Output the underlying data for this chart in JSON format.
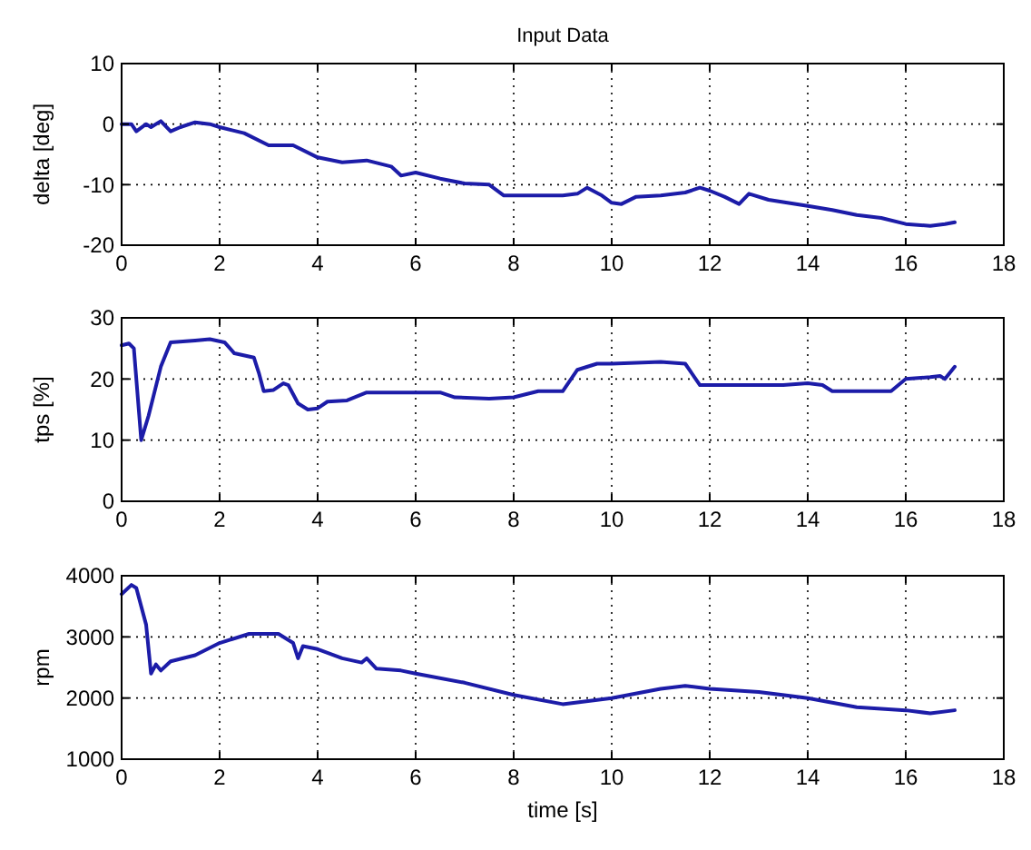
{
  "chart_data": [
    {
      "type": "line",
      "title": "Input Data",
      "ylabel": "delta [deg]",
      "xlim": [
        0,
        18
      ],
      "xticks": [
        0,
        2,
        4,
        6,
        8,
        10,
        12,
        14,
        16,
        18
      ],
      "ylim": [
        -20,
        10
      ],
      "yticks": [
        -20,
        -10,
        0,
        10
      ],
      "grid": true,
      "x": [
        0,
        0.2,
        0.3,
        0.5,
        0.6,
        0.8,
        1.0,
        1.2,
        1.5,
        1.8,
        2.0,
        2.5,
        3.0,
        3.5,
        4.0,
        4.5,
        5.0,
        5.5,
        5.7,
        6.0,
        6.5,
        7.0,
        7.5,
        7.8,
        8.5,
        9.0,
        9.3,
        9.5,
        9.8,
        10.0,
        10.2,
        10.5,
        11.0,
        11.5,
        11.8,
        12.0,
        12.3,
        12.6,
        12.8,
        13.2,
        14.0,
        14.5,
        15.0,
        15.5,
        16.0,
        16.5,
        16.8,
        17.0
      ],
      "series": [
        {
          "color": "#1c1ca8",
          "values": [
            0,
            0,
            -1.2,
            0,
            -0.5,
            0.5,
            -1.2,
            -0.5,
            0.3,
            0,
            -0.5,
            -1.5,
            -3.5,
            -3.5,
            -5.5,
            -6.3,
            -6,
            -7,
            -8.5,
            -8,
            -9,
            -9.8,
            -10,
            -11.8,
            -11.8,
            -11.8,
            -11.5,
            -10.5,
            -11.8,
            -13,
            -13.2,
            -12,
            -11.8,
            -11.3,
            -10.5,
            -11,
            -12,
            -13.2,
            -11.5,
            -12.5,
            -13.5,
            -14.2,
            -15,
            -15.5,
            -16.5,
            -16.8,
            -16.5,
            -16.2
          ]
        }
      ]
    },
    {
      "type": "line",
      "ylabel": "tps [%]",
      "xlim": [
        0,
        18
      ],
      "xticks": [
        0,
        2,
        4,
        6,
        8,
        10,
        12,
        14,
        16,
        18
      ],
      "ylim": [
        0,
        30
      ],
      "yticks": [
        0,
        10,
        20,
        30
      ],
      "grid": true,
      "x": [
        0,
        0.15,
        0.25,
        0.4,
        0.55,
        0.8,
        1.0,
        1.5,
        1.8,
        2.1,
        2.3,
        2.7,
        2.8,
        2.9,
        3.1,
        3.3,
        3.4,
        3.6,
        3.8,
        4.0,
        4.2,
        4.6,
        5.0,
        6.0,
        6.5,
        6.8,
        7.5,
        8.0,
        8.5,
        9.0,
        9.3,
        9.7,
        10.0,
        11.0,
        11.5,
        11.8,
        12.5,
        13.0,
        13.5,
        14.0,
        14.3,
        14.5,
        15.0,
        15.7,
        16.0,
        16.5,
        16.7,
        16.8,
        17.0
      ],
      "series": [
        {
          "color": "#1c1ca8",
          "values": [
            25.5,
            25.8,
            25,
            10,
            14,
            22,
            26,
            26.3,
            26.5,
            26,
            24.2,
            23.5,
            21,
            18,
            18.2,
            19.3,
            19,
            16,
            15,
            15.2,
            16.3,
            16.5,
            17.8,
            17.8,
            17.8,
            17,
            16.8,
            17,
            18,
            18,
            21.5,
            22.5,
            22.5,
            22.8,
            22.5,
            19,
            19,
            19,
            19,
            19.3,
            19,
            18,
            18,
            18,
            20,
            20.3,
            20.5,
            20,
            22
          ]
        }
      ]
    },
    {
      "type": "line",
      "xlabel": "time [s]",
      "ylabel": "rpm",
      "xlim": [
        0,
        18
      ],
      "xticks": [
        0,
        2,
        4,
        6,
        8,
        10,
        12,
        14,
        16,
        18
      ],
      "ylim": [
        1000,
        4000
      ],
      "yticks": [
        1000,
        2000,
        3000,
        4000
      ],
      "grid": true,
      "x": [
        0,
        0.2,
        0.3,
        0.5,
        0.6,
        0.7,
        0.8,
        1.0,
        1.5,
        2.0,
        2.6,
        3.2,
        3.5,
        3.6,
        3.7,
        4.0,
        4.5,
        4.9,
        5.0,
        5.2,
        5.7,
        6.0,
        7.0,
        8.0,
        9.0,
        10.0,
        11.0,
        11.5,
        12.0,
        13.0,
        14.0,
        15.0,
        16.0,
        16.5,
        17.0
      ],
      "series": [
        {
          "color": "#1c1ca8",
          "values": [
            3700,
            3850,
            3800,
            3200,
            2400,
            2550,
            2450,
            2600,
            2700,
            2900,
            3050,
            3050,
            2900,
            2650,
            2850,
            2800,
            2650,
            2580,
            2650,
            2480,
            2450,
            2400,
            2250,
            2050,
            1900,
            2000,
            2150,
            2200,
            2150,
            2100,
            2000,
            1850,
            1800,
            1750,
            1800
          ]
        }
      ]
    }
  ]
}
